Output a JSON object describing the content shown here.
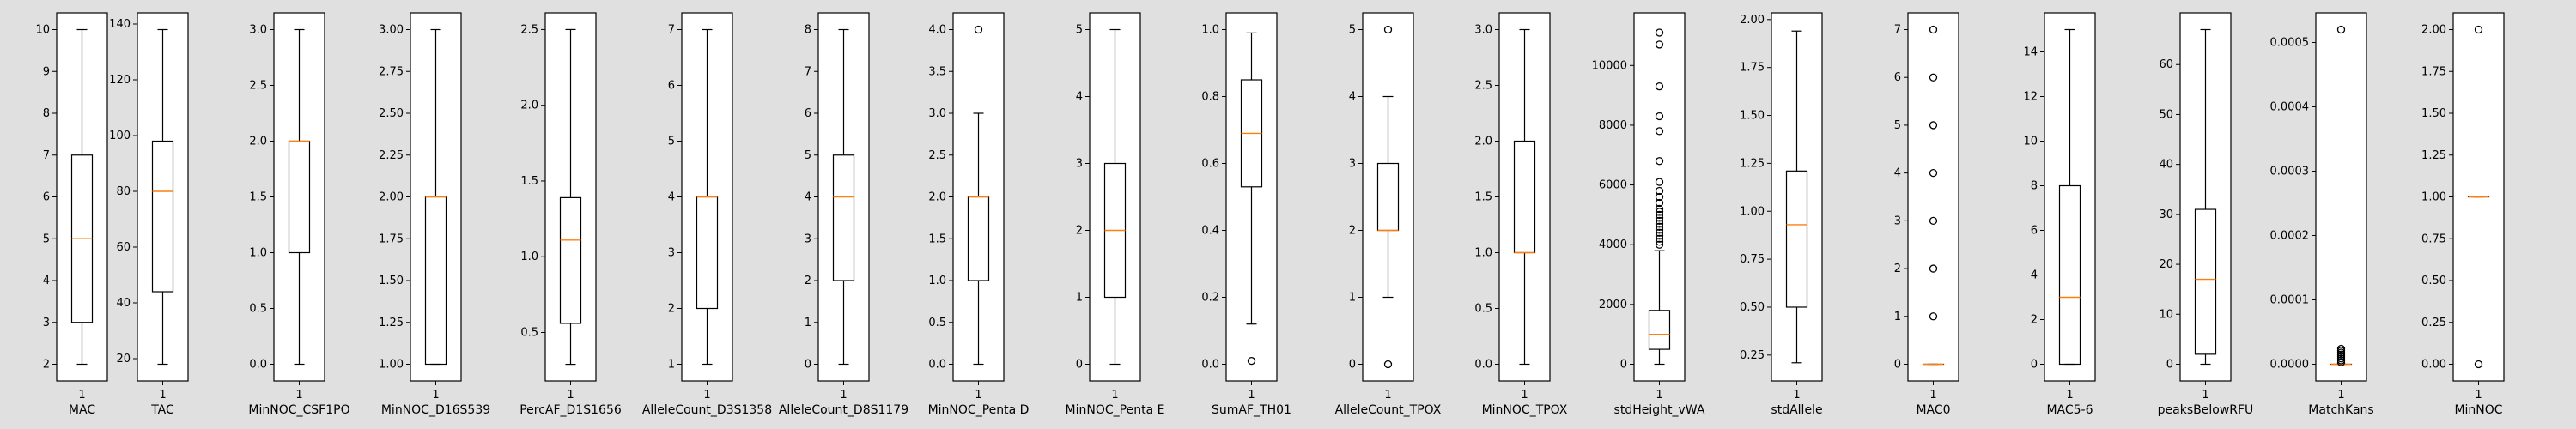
{
  "figure": {
    "background": "#e0e0e0",
    "box_color": "#000000",
    "median_color": "#ff7f0e",
    "flier_color": "#000000"
  },
  "chart_data": [
    {
      "type": "box",
      "xlabel": "MAC",
      "xticks": [
        "1"
      ],
      "ylim": [
        1.6,
        10.4
      ],
      "yticks": [
        2,
        3,
        4,
        5,
        6,
        7,
        8,
        9,
        10
      ],
      "ytick_labels": [
        "2",
        "3",
        "4",
        "5",
        "6",
        "7",
        "8",
        "9",
        "10"
      ],
      "box": {
        "whisker_low": 2,
        "q1": 3,
        "median": 5,
        "q3": 7,
        "whisker_high": 10,
        "fliers": []
      }
    },
    {
      "type": "box",
      "xlabel": "TAC",
      "xticks": [
        "1"
      ],
      "ylim": [
        12,
        144
      ],
      "yticks": [
        20,
        40,
        60,
        80,
        100,
        120,
        140
      ],
      "ytick_labels": [
        "20",
        "40",
        "60",
        "80",
        "100",
        "120",
        "140"
      ],
      "box": {
        "whisker_low": 18,
        "q1": 44,
        "median": 80,
        "q3": 98,
        "whisker_high": 138,
        "fliers": []
      }
    },
    {
      "type": "box",
      "xlabel": "MinNOC_CSF1PO",
      "xticks": [
        "1"
      ],
      "ylim": [
        -0.15,
        3.15
      ],
      "yticks": [
        0,
        0.5,
        1,
        1.5,
        2,
        2.5,
        3
      ],
      "ytick_labels": [
        "0.0",
        "0.5",
        "1.0",
        "1.5",
        "2.0",
        "2.5",
        "3.0"
      ],
      "box": {
        "whisker_low": 0,
        "q1": 1,
        "median": 2,
        "q3": 2,
        "whisker_high": 3,
        "fliers": []
      }
    },
    {
      "type": "box",
      "xlabel": "MinNOC_D16S539",
      "xticks": [
        "1"
      ],
      "ylim": [
        0.9,
        3.1
      ],
      "yticks": [
        1,
        1.25,
        1.5,
        1.75,
        2,
        2.25,
        2.5,
        2.75,
        3
      ],
      "ytick_labels": [
        "1.00",
        "1.25",
        "1.50",
        "1.75",
        "2.00",
        "2.25",
        "2.50",
        "2.75",
        "3.00"
      ],
      "box": {
        "whisker_low": 1,
        "q1": 1,
        "median": 2,
        "q3": 2,
        "whisker_high": 3,
        "fliers": []
      }
    },
    {
      "type": "box",
      "xlabel": "PercAF_D1S1656",
      "xticks": [
        "1"
      ],
      "ylim": [
        0.18,
        2.61
      ],
      "yticks": [
        0.5,
        1,
        1.5,
        2,
        2.5
      ],
      "ytick_labels": [
        "0.5",
        "1.0",
        "1.5",
        "2.0",
        "2.5"
      ],
      "box": {
        "whisker_low": 0.29,
        "q1": 0.56,
        "median": 1.11,
        "q3": 1.39,
        "whisker_high": 2.5,
        "fliers": []
      }
    },
    {
      "type": "box",
      "xlabel": "AlleleCount_D3S1358",
      "xticks": [
        "1"
      ],
      "ylim": [
        0.7,
        7.3
      ],
      "yticks": [
        1,
        2,
        3,
        4,
        5,
        6,
        7
      ],
      "ytick_labels": [
        "1",
        "2",
        "3",
        "4",
        "5",
        "6",
        "7"
      ],
      "box": {
        "whisker_low": 1,
        "q1": 2,
        "median": 4,
        "q3": 4,
        "whisker_high": 7,
        "fliers": []
      }
    },
    {
      "type": "box",
      "xlabel": "AlleleCount_D8S1179",
      "xticks": [
        "1"
      ],
      "ylim": [
        -0.4,
        8.4
      ],
      "yticks": [
        0,
        1,
        2,
        3,
        4,
        5,
        6,
        7,
        8
      ],
      "ytick_labels": [
        "0",
        "1",
        "2",
        "3",
        "4",
        "5",
        "6",
        "7",
        "8"
      ],
      "box": {
        "whisker_low": 0,
        "q1": 2,
        "median": 4,
        "q3": 5,
        "whisker_high": 8,
        "fliers": []
      }
    },
    {
      "type": "box",
      "xlabel": "MinNOC_Penta D",
      "xticks": [
        "1"
      ],
      "ylim": [
        -0.2,
        4.2
      ],
      "yticks": [
        0,
        0.5,
        1,
        1.5,
        2,
        2.5,
        3,
        3.5,
        4
      ],
      "ytick_labels": [
        "0.0",
        "0.5",
        "1.0",
        "1.5",
        "2.0",
        "2.5",
        "3.0",
        "3.5",
        "4.0"
      ],
      "box": {
        "whisker_low": 0,
        "q1": 1,
        "median": 2,
        "q3": 2,
        "whisker_high": 3,
        "fliers": [
          4
        ]
      }
    },
    {
      "type": "box",
      "xlabel": "MinNOC_Penta E",
      "xticks": [
        "1"
      ],
      "ylim": [
        -0.25,
        5.25
      ],
      "yticks": [
        0,
        1,
        2,
        3,
        4,
        5
      ],
      "ytick_labels": [
        "0",
        "1",
        "2",
        "3",
        "4",
        "5"
      ],
      "box": {
        "whisker_low": 0,
        "q1": 1,
        "median": 2,
        "q3": 3,
        "whisker_high": 5,
        "fliers": []
      }
    },
    {
      "type": "box",
      "xlabel": "SumAF_TH01",
      "xticks": [
        "1"
      ],
      "ylim": [
        -0.05,
        1.05
      ],
      "yticks": [
        0,
        0.2,
        0.4,
        0.6,
        0.8,
        1
      ],
      "ytick_labels": [
        "0.0",
        "0.2",
        "0.4",
        "0.6",
        "0.8",
        "1.0"
      ],
      "box": {
        "whisker_low": 0.12,
        "q1": 0.53,
        "median": 0.69,
        "q3": 0.85,
        "whisker_high": 0.99,
        "fliers": [
          0.01
        ]
      }
    },
    {
      "type": "box",
      "xlabel": "AlleleCount_TPOX",
      "xticks": [
        "1"
      ],
      "ylim": [
        -0.25,
        5.25
      ],
      "yticks": [
        0,
        1,
        2,
        3,
        4,
        5
      ],
      "ytick_labels": [
        "0",
        "1",
        "2",
        "3",
        "4",
        "5"
      ],
      "box": {
        "whisker_low": 1,
        "q1": 2,
        "median": 2,
        "q3": 3,
        "whisker_high": 4,
        "fliers": [
          0,
          5
        ]
      }
    },
    {
      "type": "box",
      "xlabel": "MinNOC_TPOX",
      "xticks": [
        "1"
      ],
      "ylim": [
        -0.15,
        3.15
      ],
      "yticks": [
        0,
        0.5,
        1,
        1.5,
        2,
        2.5,
        3
      ],
      "ytick_labels": [
        "0.0",
        "0.5",
        "1.0",
        "1.5",
        "2.0",
        "2.5",
        "3.0"
      ],
      "box": {
        "whisker_low": 0,
        "q1": 1,
        "median": 1,
        "q3": 2,
        "whisker_high": 3,
        "fliers": []
      }
    },
    {
      "type": "box",
      "xlabel": "stdHeight_vWA",
      "xticks": [
        "1"
      ],
      "ylim": [
        -560,
        11760
      ],
      "yticks": [
        0,
        2000,
        4000,
        6000,
        8000,
        10000
      ],
      "ytick_labels": [
        "0",
        "2000",
        "4000",
        "6000",
        "8000",
        "10000"
      ],
      "box": {
        "whisker_low": 0,
        "q1": 500,
        "median": 1000,
        "q3": 1800,
        "whisker_high": 3800,
        "fliers": [
          4000,
          4100,
          4200,
          4300,
          4400,
          4500,
          4600,
          4700,
          4800,
          4900,
          5000,
          5100,
          5200,
          5400,
          5600,
          5800,
          6100,
          6800,
          7800,
          8300,
          9300,
          10700,
          11100
        ]
      }
    },
    {
      "type": "box",
      "xlabel": "stdAllele",
      "xticks": [
        "1"
      ],
      "ylim": [
        0.115,
        2.035
      ],
      "yticks": [
        0.25,
        0.5,
        0.75,
        1,
        1.25,
        1.5,
        1.75,
        2
      ],
      "ytick_labels": [
        "0.25",
        "0.50",
        "0.75",
        "1.00",
        "1.25",
        "1.50",
        "1.75",
        "2.00"
      ],
      "box": {
        "whisker_low": 0.21,
        "q1": 0.5,
        "median": 0.93,
        "q3": 1.21,
        "whisker_high": 1.94,
        "fliers": []
      }
    },
    {
      "type": "box",
      "xlabel": "MAC0",
      "xticks": [
        "1"
      ],
      "ylim": [
        -0.35,
        7.35
      ],
      "yticks": [
        0,
        1,
        2,
        3,
        4,
        5,
        6,
        7
      ],
      "ytick_labels": [
        "0",
        "1",
        "2",
        "3",
        "4",
        "5",
        "6",
        "7"
      ],
      "box": {
        "whisker_low": 0,
        "q1": 0,
        "median": 0,
        "q3": 0,
        "whisker_high": 0,
        "fliers": [
          1,
          2,
          3,
          4,
          5,
          6,
          7
        ]
      }
    },
    {
      "type": "box",
      "xlabel": "MAC5-6",
      "xticks": [
        "1"
      ],
      "ylim": [
        -0.75,
        15.75
      ],
      "yticks": [
        0,
        2,
        4,
        6,
        8,
        10,
        12,
        14
      ],
      "ytick_labels": [
        "0",
        "2",
        "4",
        "6",
        "8",
        "10",
        "12",
        "14"
      ],
      "box": {
        "whisker_low": 0,
        "q1": 0,
        "median": 3,
        "q3": 8,
        "whisker_high": 15,
        "fliers": []
      }
    },
    {
      "type": "box",
      "xlabel": "peaksBelowRFU",
      "xticks": [
        "1"
      ],
      "ylim": [
        -3.35,
        70.35
      ],
      "yticks": [
        0,
        10,
        20,
        30,
        40,
        50,
        60
      ],
      "ytick_labels": [
        "0",
        "10",
        "20",
        "30",
        "40",
        "50",
        "60"
      ],
      "box": {
        "whisker_low": 0,
        "q1": 2,
        "median": 17,
        "q3": 31,
        "whisker_high": 67,
        "fliers": []
      }
    },
    {
      "type": "box",
      "xlabel": "MatchKans",
      "xticks": [
        "1"
      ],
      "ylim": [
        -2.6e-05,
        0.000546
      ],
      "yticks": [
        0,
        0.0001,
        0.0002,
        0.0003,
        0.0004,
        0.0005
      ],
      "ytick_labels": [
        "0.0000",
        "0.0001",
        "0.0002",
        "0.0003",
        "0.0004",
        "0.0005"
      ],
      "box": {
        "whisker_low": 0,
        "q1": 0,
        "median": 0,
        "q3": 0,
        "whisker_high": 0,
        "fliers": [
          3e-06,
          6e-06,
          9e-06,
          1.2e-05,
          1.5e-05,
          1.8e-05,
          2.1e-05,
          2.4e-05,
          0.00052
        ]
      }
    },
    {
      "type": "box",
      "xlabel": "MinNOC",
      "xticks": [
        "1"
      ],
      "ylim": [
        -0.1,
        2.1
      ],
      "yticks": [
        0,
        0.25,
        0.5,
        0.75,
        1,
        1.25,
        1.5,
        1.75,
        2
      ],
      "ytick_labels": [
        "0.00",
        "0.25",
        "0.50",
        "0.75",
        "1.00",
        "1.25",
        "1.50",
        "1.75",
        "2.00"
      ],
      "box": {
        "whisker_low": 1,
        "q1": 1,
        "median": 1,
        "q3": 1,
        "whisker_high": 1,
        "fliers": [
          0,
          2
        ]
      }
    }
  ]
}
